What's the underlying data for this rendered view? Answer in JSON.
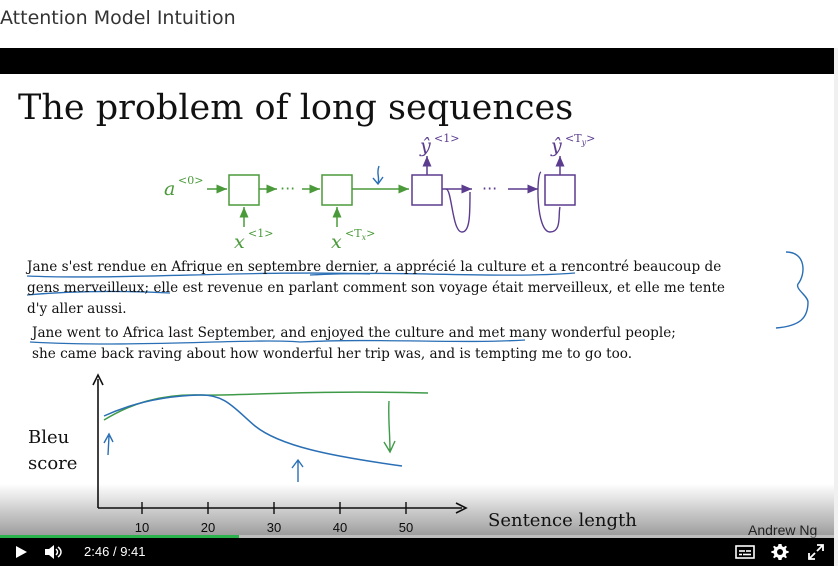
{
  "page_title": "Attention Model Intuition",
  "slide": {
    "title": "The problem of long sequences",
    "diagram": {
      "a0": "a",
      "a0_sup": "<0>",
      "x1": "x",
      "x1_sup": "<1>",
      "xT": "x",
      "xT_sup_open": "<T",
      "xT_sup_sub": "x",
      "xT_sup_close": ">",
      "y1": "ŷ",
      "y1_sup": "<1>",
      "yT": "ŷ",
      "yT_sup_open": "<T",
      "yT_sup_sub": "y",
      "yT_sup_close": ">",
      "ellipsis": "···"
    },
    "french_lines": [
      "Jane s'est rendue en Afrique en septembre dernier, a apprécié la culture et a rencontré beaucoup de",
      "gens merveilleux; elle est revenue en parlant comment son voyage était merveilleux, et elle me tente",
      "d'y aller aussi."
    ],
    "english_lines": [
      "Jane went to Africa last September, and enjoyed the culture and met many wonderful people;",
      "she came back raving about how wonderful her trip was, and is tempting me to go too."
    ],
    "chart": {
      "ylabel_line1": "Bleu",
      "ylabel_line2": "score",
      "xlabel": "Sentence length",
      "ticks": [
        "10",
        "20",
        "30",
        "40",
        "50"
      ]
    },
    "author": "Andrew Ng"
  },
  "player": {
    "current_time": "2:46",
    "separator": "/",
    "duration": "9:41",
    "progress_fraction": 0.286
  },
  "colors": {
    "green": "#4a9a3a",
    "purple": "#5b3c8f",
    "blue_ink": "#2a6fb5",
    "green_ink": "#3f9a48",
    "progress": "#2bb24c"
  },
  "icons": [
    "play-icon",
    "volume-icon",
    "captions-icon",
    "settings-icon",
    "fullscreen-icon"
  ]
}
